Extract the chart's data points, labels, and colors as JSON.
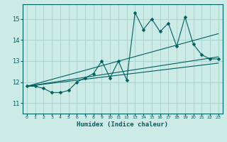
{
  "xlabel": "Humidex (Indice chaleur)",
  "xlim": [
    -0.5,
    23.5
  ],
  "ylim": [
    10.5,
    15.7
  ],
  "yticks": [
    11,
    12,
    13,
    14,
    15
  ],
  "xticks": [
    0,
    1,
    2,
    3,
    4,
    5,
    6,
    7,
    8,
    9,
    10,
    11,
    12,
    13,
    14,
    15,
    16,
    17,
    18,
    19,
    20,
    21,
    22,
    23
  ],
  "bg_color": "#cceae6",
  "grid_color": "#aad4d0",
  "line_color": "#005f5f",
  "curve1_x": [
    0,
    1,
    2,
    3,
    4,
    5,
    6,
    7,
    8,
    9,
    10,
    11,
    12,
    13,
    14,
    15,
    16,
    17,
    18,
    19,
    20,
    21,
    22,
    23
  ],
  "curve1_y": [
    11.8,
    11.8,
    11.7,
    11.5,
    11.5,
    11.6,
    12.0,
    12.2,
    12.4,
    13.0,
    12.2,
    13.0,
    12.1,
    15.3,
    14.5,
    15.0,
    14.4,
    14.8,
    13.7,
    15.1,
    13.8,
    13.3,
    13.1,
    13.1
  ],
  "trend1_x": [
    0,
    23
  ],
  "trend1_y": [
    11.8,
    14.3
  ],
  "trend2_x": [
    0,
    23
  ],
  "trend2_y": [
    11.8,
    13.2
  ],
  "trend3_x": [
    0,
    23
  ],
  "trend3_y": [
    11.8,
    12.9
  ],
  "marker_size": 2.5
}
